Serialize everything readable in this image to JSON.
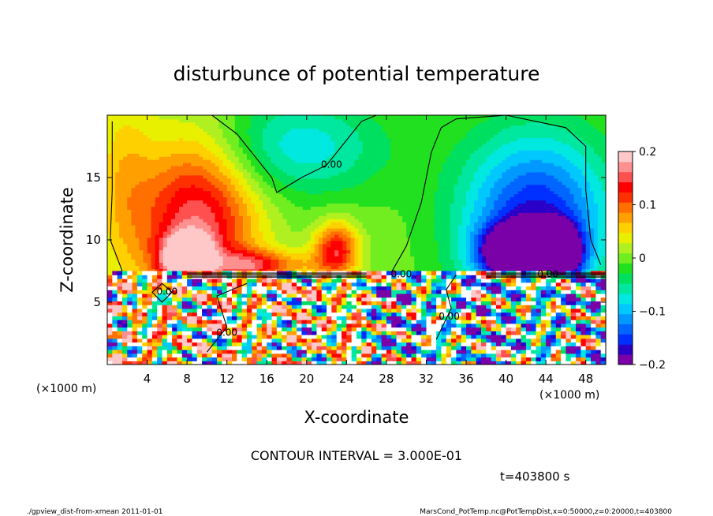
{
  "chart_data": {
    "type": "heatmap",
    "title": "disturbunce of potential temperature",
    "xlabel": "X-coordinate",
    "ylabel": "Z-coordinate",
    "x_unit_left": "(×1000 m)",
    "x_unit_right": "(×1000 m)",
    "xlim": [
      0,
      50
    ],
    "ylim": [
      0,
      20
    ],
    "x_ticks": [
      4,
      8,
      12,
      16,
      20,
      24,
      28,
      32,
      36,
      40,
      44,
      48
    ],
    "y_ticks": [
      5,
      10,
      15
    ],
    "colorbar": {
      "range": [
        -0.2,
        0.2
      ],
      "ticks": [
        0.2,
        0.1,
        0,
        -0.1,
        -0.2
      ],
      "tick_labels": [
        "0.2",
        "0.1",
        "0",
        "−0.1",
        "−0.2"
      ],
      "colors": [
        "#7a00a8",
        "#2a00c8",
        "#0030ff",
        "#0066ff",
        "#0099ff",
        "#00c8ff",
        "#00e8e0",
        "#00e8a0",
        "#00e060",
        "#20e020",
        "#70ee20",
        "#b0f020",
        "#e8f000",
        "#ffd000",
        "#ffa000",
        "#ff7000",
        "#ff3000",
        "#ff0000",
        "#ff5050",
        "#ff9090",
        "#ffc8c8"
      ]
    },
    "contour_label": "0.00",
    "contour_interval_text": "CONTOUR INTERVAL = 3.000E-01",
    "time_text": "t=403800 s",
    "blobs": [
      {
        "x": 9,
        "z": 11.5,
        "rx": 6,
        "rz": 7,
        "v": 0.16
      },
      {
        "x": 8,
        "z": 8.5,
        "rx": 2.5,
        "rz": 1.8,
        "v": 0.2
      },
      {
        "x": 23,
        "z": 9.2,
        "rx": 2.2,
        "rz": 2.2,
        "v": 0.14
      },
      {
        "x": 18,
        "z": 8,
        "rx": 4,
        "rz": 1.2,
        "v": 0.06
      },
      {
        "x": 14,
        "z": 8,
        "rx": 3,
        "rz": 1.2,
        "v": 0.09
      },
      {
        "x": 19,
        "z": 17.5,
        "rx": 9,
        "rz": 4,
        "v": -0.08
      },
      {
        "x": 43,
        "z": 11.5,
        "rx": 7.5,
        "rz": 7,
        "v": -0.17
      },
      {
        "x": 41,
        "z": 9,
        "rx": 3.5,
        "rz": 2,
        "v": -0.22
      },
      {
        "x": 45.5,
        "z": 9,
        "rx": 2,
        "rz": 2,
        "v": -0.22
      },
      {
        "x": 1.5,
        "z": 15,
        "rx": 3,
        "rz": 8,
        "v": 0.05
      }
    ]
  },
  "footer": {
    "left": "./gpview_dist-from-xmean  2011-01-01",
    "right": "MarsCond_PotTemp.nc@PotTempDist,x=0:50000,z=0:20000,t=403800"
  }
}
